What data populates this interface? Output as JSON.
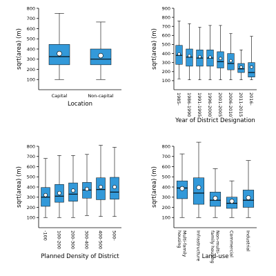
{
  "colors": {
    "box_fill": "#3399d9",
    "box_stroke": "#000000",
    "median": "#000000",
    "mean_fill": "#ffffff"
  },
  "chart_data": [
    {
      "type": "box",
      "xlabel": "Location",
      "ylabel": "sqrt(area) (m)",
      "ylim": [
        0,
        800
      ],
      "yticks": [
        100,
        200,
        300,
        400,
        500,
        600,
        700,
        800
      ],
      "tick_rotation": 0,
      "categories": [
        "Capital",
        "Non-capital"
      ],
      "boxes": [
        {
          "min": 100,
          "q1": 245,
          "median": 325,
          "q3": 445,
          "max": 750,
          "mean": 355
        },
        {
          "min": 100,
          "q1": 245,
          "median": 300,
          "q3": 400,
          "max": 665,
          "mean": 335
        }
      ]
    },
    {
      "type": "box",
      "xlabel": "Year of District Designation",
      "ylabel": "sqrt(area) (m)",
      "ylim": [
        0,
        900
      ],
      "yticks": [
        100,
        200,
        300,
        400,
        500,
        600,
        700,
        800,
        900
      ],
      "tick_rotation": 90,
      "categories": [
        "1985-",
        "1986-1990",
        "1991-1995",
        "1996-2000",
        "2001-2005",
        "2006-2010",
        "2011-2015",
        "2016-"
      ],
      "boxes": [
        {
          "min": 120,
          "q1": 280,
          "median": 380,
          "q3": 490,
          "max": 760,
          "mean": 395
        },
        {
          "min": 110,
          "q1": 260,
          "median": 360,
          "q3": 450,
          "max": 730,
          "mean": 375
        },
        {
          "min": 110,
          "q1": 260,
          "median": 350,
          "q3": 440,
          "max": 690,
          "mean": 365
        },
        {
          "min": 110,
          "q1": 260,
          "median": 350,
          "q3": 440,
          "max": 710,
          "mean": 360
        },
        {
          "min": 110,
          "q1": 240,
          "median": 310,
          "q3": 420,
          "max": 710,
          "mean": 345
        },
        {
          "min": 110,
          "q1": 220,
          "median": 290,
          "q3": 400,
          "max": 620,
          "mean": 320
        },
        {
          "min": 110,
          "q1": 190,
          "median": 230,
          "q3": 290,
          "max": 440,
          "mean": 250
        },
        {
          "min": 110,
          "q1": 140,
          "median": 190,
          "q3": 300,
          "max": 590,
          "mean": 250
        }
      ]
    },
    {
      "type": "box",
      "xlabel": "Planned Density of District",
      "ylabel": "sqrt(area) (m)",
      "ylim": [
        0,
        800
      ],
      "yticks": [
        100,
        200,
        300,
        400,
        500,
        600,
        700,
        800
      ],
      "tick_rotation": 90,
      "categories": [
        "-100",
        "100-200",
        "200-300",
        "300-400",
        "400-500",
        "500-"
      ],
      "boxes": [
        {
          "min": 100,
          "q1": 210,
          "median": 300,
          "q3": 395,
          "max": 680,
          "mean": 320
        },
        {
          "min": 100,
          "q1": 250,
          "median": 310,
          "q3": 425,
          "max": 710,
          "mean": 340
        },
        {
          "min": 100,
          "q1": 260,
          "median": 330,
          "q3": 440,
          "max": 710,
          "mean": 365
        },
        {
          "min": 120,
          "q1": 290,
          "median": 370,
          "q3": 445,
          "max": 720,
          "mean": 380
        },
        {
          "min": 110,
          "q1": 275,
          "median": 375,
          "q3": 490,
          "max": 810,
          "mean": 400
        },
        {
          "min": 110,
          "q1": 280,
          "median": 350,
          "q3": 495,
          "max": 790,
          "mean": 400
        }
      ]
    },
    {
      "type": "box",
      "xlabel": "Land-use",
      "ylabel": "sqrt(area) (m)",
      "ylim": [
        0,
        800
      ],
      "yticks": [
        100,
        200,
        300,
        400,
        500,
        600,
        700,
        800
      ],
      "tick_rotation": 90,
      "categories": [
        "Multi-family\nhousing",
        "Infrastructure",
        "Non-multi-\nfamily housing",
        "Commercial",
        "Industrial"
      ],
      "boxes": [
        {
          "min": 100,
          "q1": 285,
          "median": 390,
          "q3": 460,
          "max": 725,
          "mean": 385
        },
        {
          "min": 100,
          "q1": 230,
          "median": 340,
          "q3": 490,
          "max": 840,
          "mean": 395
        },
        {
          "min": 100,
          "q1": 210,
          "median": 270,
          "q3": 350,
          "max": 580,
          "mean": 290
        },
        {
          "min": 100,
          "q1": 190,
          "median": 240,
          "q3": 300,
          "max": 460,
          "mean": 260
        },
        {
          "min": 100,
          "q1": 200,
          "median": 270,
          "q3": 370,
          "max": 660,
          "mean": 295
        }
      ]
    }
  ]
}
